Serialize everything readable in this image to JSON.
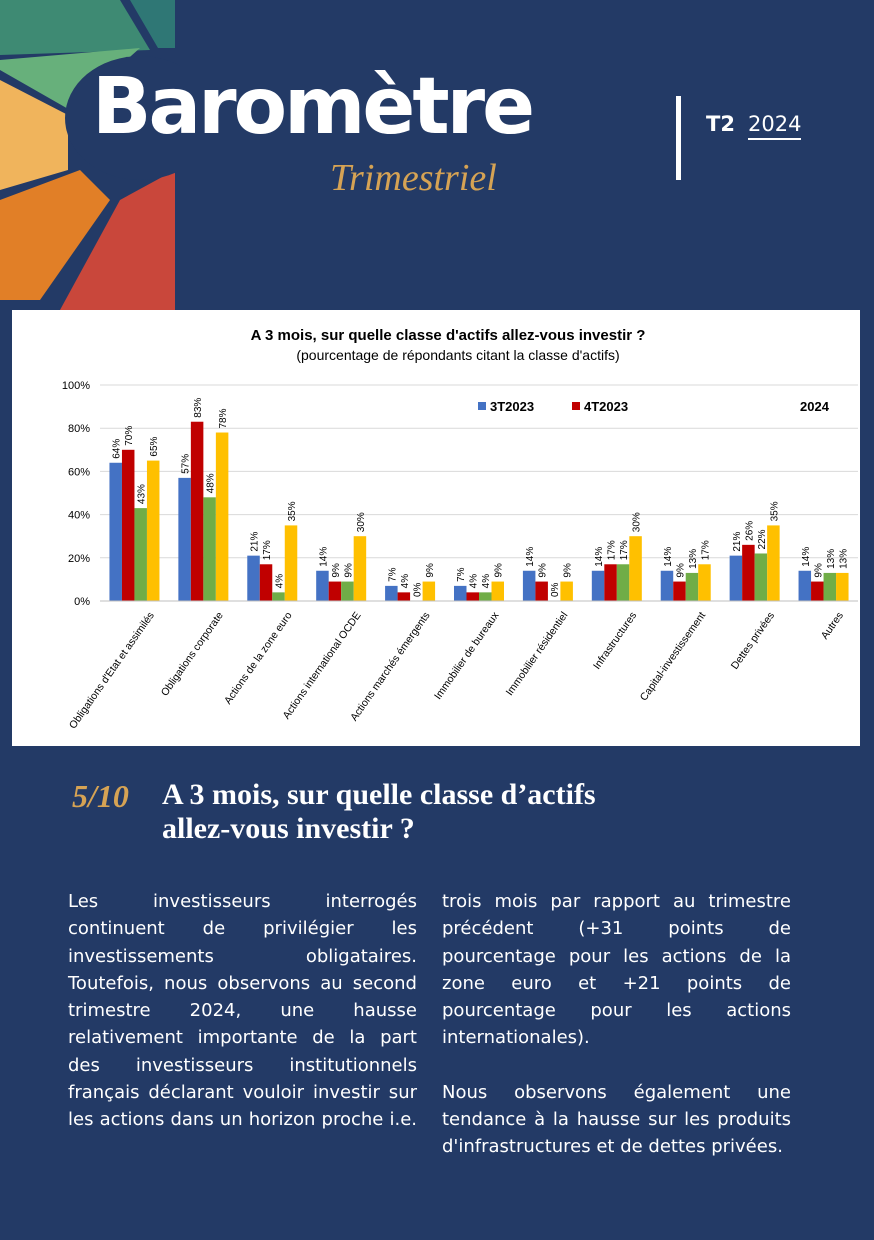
{
  "header": {
    "title": "Baromètre",
    "subtitle": "Trimestriel",
    "quarter": "T2",
    "year": "2024"
  },
  "chart_data": {
    "type": "bar",
    "title": "A 3 mois, sur quelle classe d'actifs allez-vous investir ?",
    "subtitle": "(pourcentage de répondants citant la classe d'actifs)",
    "categories": [
      "Obligations d'Etat et assimilés",
      "Obligations corporate",
      "Actions de la zone euro",
      "Actions international OCDE",
      "Actions marchés émergents",
      "Immobilier de bureaux",
      "Immobilier résidentiel",
      "Infrastructures",
      "Capital-investissement",
      "Dettes privées",
      "Autres"
    ],
    "series": [
      {
        "name": "3T2023",
        "color": "#4472c4",
        "values": [
          64,
          57,
          21,
          14,
          7,
          7,
          14,
          14,
          14,
          21,
          14
        ],
        "value_labels": [
          "64%",
          "57%",
          "21%",
          "14%",
          "7%",
          "7%",
          "14%",
          "14%",
          "14%",
          "21%",
          "14%"
        ]
      },
      {
        "name": "4T2023",
        "color": "#c00000",
        "values": [
          70,
          83,
          17,
          9,
          4,
          4,
          9,
          17,
          9,
          26,
          9
        ],
        "value_labels": [
          "70%",
          "83%",
          "17%",
          "9%",
          "4%",
          "4%",
          "9%",
          "17%",
          "9%",
          "26%",
          "9%"
        ]
      },
      {
        "color": "#70ad47",
        "values": [
          43,
          48,
          4,
          9,
          0,
          4,
          0,
          17,
          13,
          22,
          13
        ],
        "value_labels": [
          "43%",
          "48%",
          "4%",
          "9%",
          "0%",
          "4%",
          "0%",
          "17%",
          "13%",
          "22%",
          "13%"
        ]
      },
      {
        "name": "2024",
        "color": "#ffc000",
        "values": [
          65,
          78,
          35,
          30,
          9,
          9,
          9,
          30,
          17,
          35,
          13
        ],
        "value_labels": [
          "65%",
          "78%",
          "35%",
          "30%",
          "9%",
          "9%",
          "9%",
          "30%",
          "17%",
          "35%",
          "13%"
        ]
      }
    ],
    "ylim": [
      0,
      100
    ],
    "yticks": [
      {
        "value": 0,
        "label": "0%"
      },
      {
        "value": 20,
        "label": "20%"
      },
      {
        "value": 40,
        "label": "40%"
      },
      {
        "value": 60,
        "label": "60%"
      },
      {
        "value": 80,
        "label": "80%"
      },
      {
        "value": 100,
        "label": "100%"
      }
    ],
    "grid": true
  },
  "section": {
    "number": "5/10",
    "heading": "A 3 mois, sur quelle classe d’actifs allez-vous investir ?"
  },
  "body": {
    "paragraphs": [
      "Les investisseurs interrogés continuent de privilégier les investissements obligataires. Toutefois, nous observons au second trimestre 2024, une hausse relativement importante de la part des investisseurs institutionnels français déclarant vouloir investir sur les actions dans un horizon proche i.e. trois mois par rapport au trimestre précédent (+31 points de pourcentage pour les actions de la zone euro et +21 points de pourcentage pour les actions internationales).",
      "Nous observons également une tendance à la hausse sur les produits d'infrastructures et de dettes privées."
    ]
  }
}
